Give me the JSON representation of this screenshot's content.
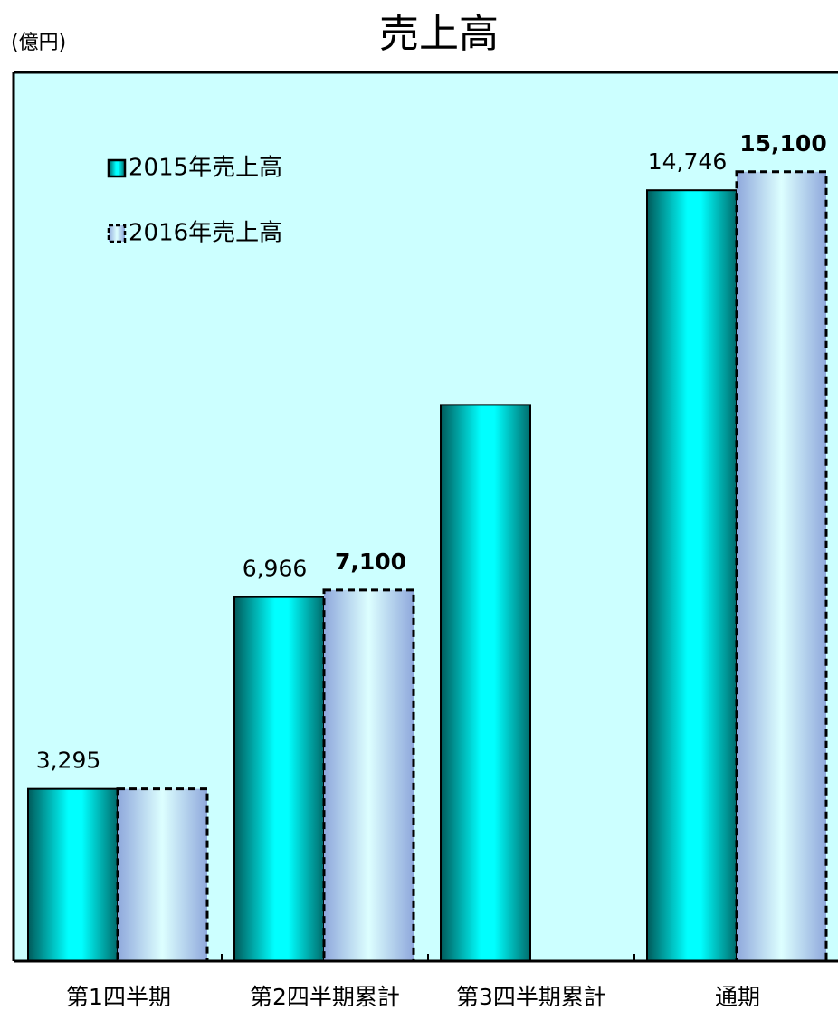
{
  "chart_data": {
    "type": "bar",
    "title": "売上高",
    "y_label": "(億円)",
    "categories": [
      "第1四半期",
      "第2四半期累計",
      "第3四半期累計",
      "通期"
    ],
    "series": [
      {
        "name": "2015年売上高",
        "color": "#00e5e5",
        "values": [
          3295,
          6966,
          10640,
          14746
        ],
        "value_labels": [
          "3,295",
          "6,966",
          null,
          "14,746"
        ]
      },
      {
        "name": "2016年売上高",
        "color": "#c8f4fa",
        "values": [
          3295,
          7100,
          null,
          15100
        ],
        "value_labels": [
          null,
          "7,100",
          null,
          "15,100"
        ]
      }
    ],
    "ylim": [
      0,
      17000
    ],
    "background": "#ccffff"
  }
}
